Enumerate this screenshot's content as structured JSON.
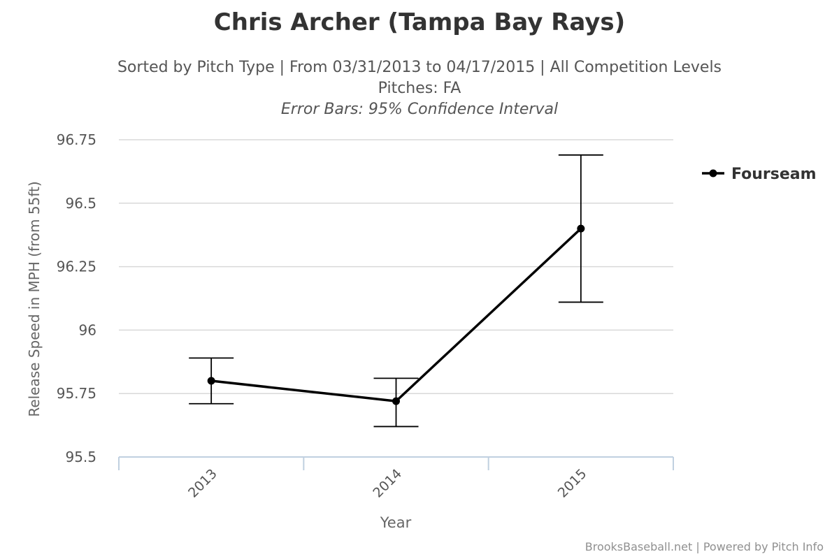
{
  "chart_data": {
    "type": "line",
    "title": "Chris Archer (Tampa Bay Rays)",
    "subtitle": [
      "Sorted by Pitch Type | From 03/31/2013 to 04/17/2015 | All Competition Levels",
      "Pitches: FA",
      "Error Bars: 95% Confidence Interval"
    ],
    "xlabel": "Year",
    "ylabel": "Release Speed in MPH (from 55ft)",
    "categories": [
      "2013",
      "2014",
      "2015"
    ],
    "yticks": [
      "95.5",
      "95.75",
      "96",
      "96.25",
      "96.5",
      "96.75"
    ],
    "ylim": [
      95.5,
      96.75
    ],
    "grid": true,
    "legend_position": "top-right",
    "series": [
      {
        "name": "Fourseam",
        "color": "#000000",
        "values": [
          95.8,
          95.72,
          96.4
        ],
        "error_low": [
          95.71,
          95.62,
          96.11
        ],
        "error_high": [
          95.89,
          95.81,
          96.69
        ]
      }
    ]
  },
  "footer": "BrooksBaseball.net | Powered by Pitch Info"
}
